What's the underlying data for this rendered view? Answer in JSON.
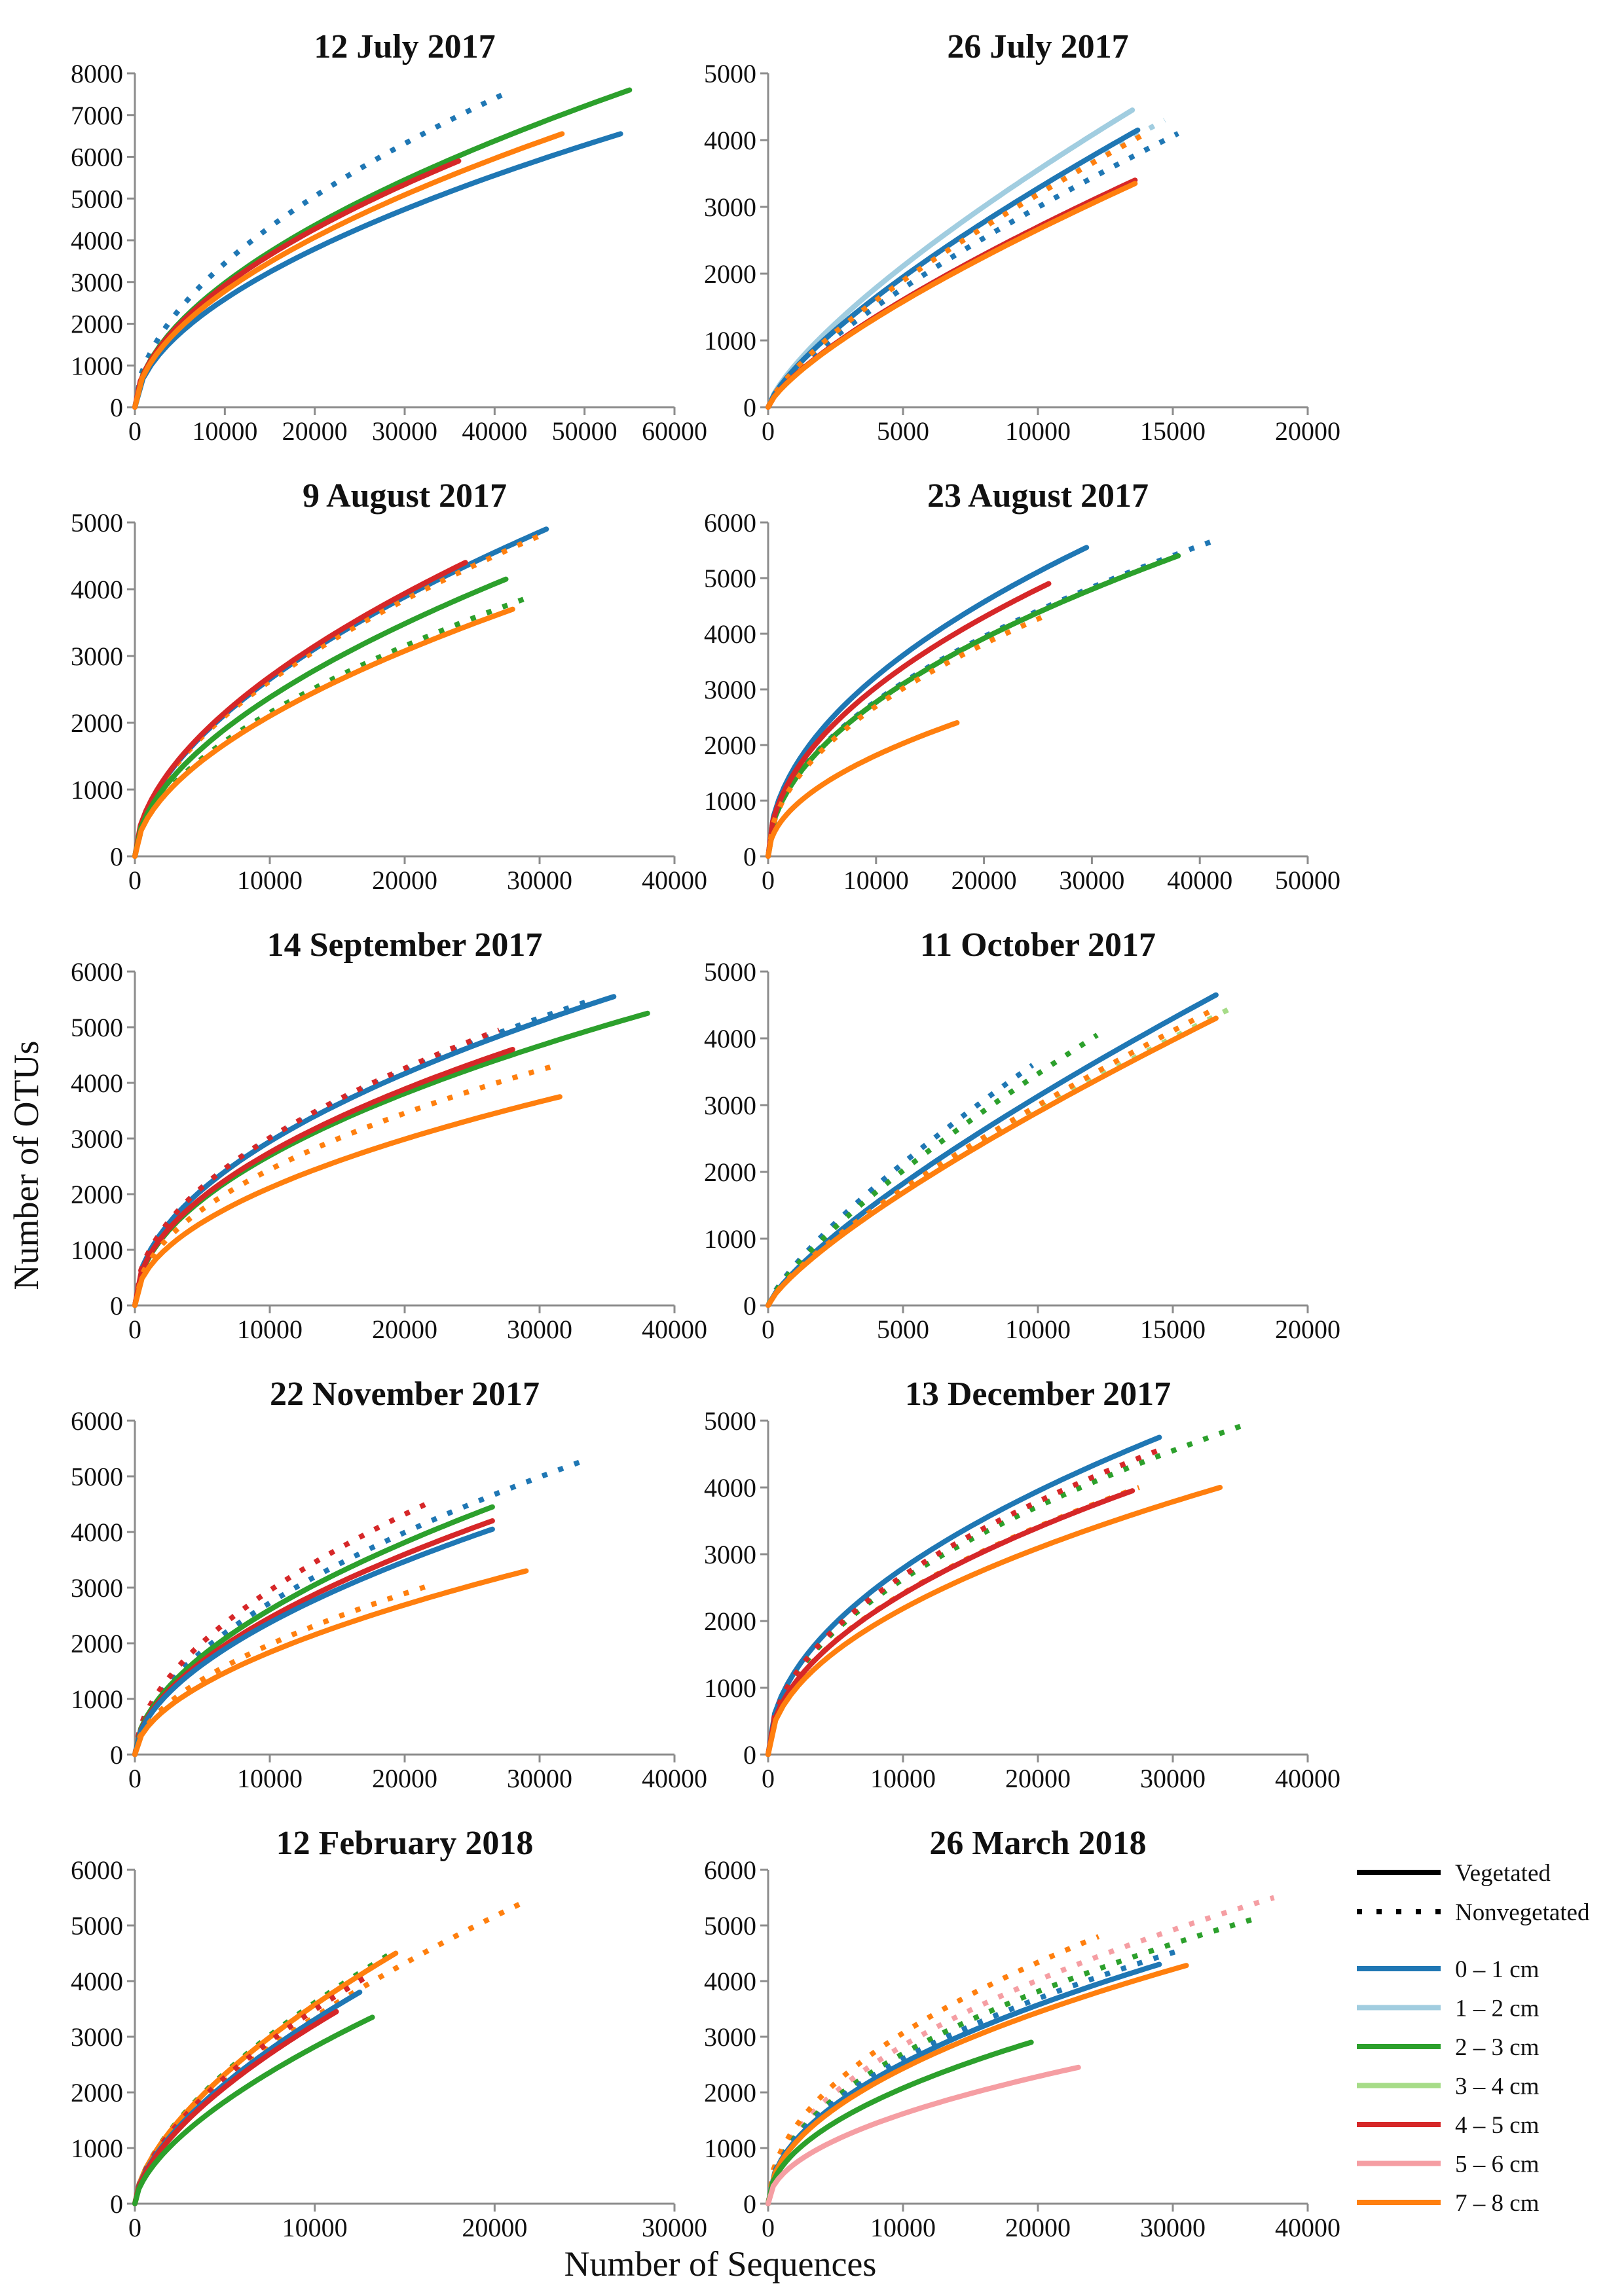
{
  "figure": {
    "ylabel": "Number of OTUs",
    "xlabel": "Number of Sequences"
  },
  "legend": {
    "styles": [
      {
        "label": "Vegetated",
        "dash": "solid"
      },
      {
        "label": "Nonvegetated",
        "dash": "dotted"
      }
    ],
    "depths": [
      {
        "label": "0 – 1 cm",
        "color": "#1f77b4"
      },
      {
        "label": "1 – 2 cm",
        "color": "#a1cde0"
      },
      {
        "label": "2 – 3 cm",
        "color": "#2ca02c"
      },
      {
        "label": "3 – 4 cm",
        "color": "#a6dc88"
      },
      {
        "label": "4 – 5 cm",
        "color": "#d62728"
      },
      {
        "label": "5 – 6 cm",
        "color": "#f59ea3"
      },
      {
        "label": "7 – 8 cm",
        "color": "#ff7f0e"
      }
    ]
  },
  "chart_data": [
    {
      "type": "line",
      "title": "12 July 2017",
      "xlim": [
        0,
        60000
      ],
      "ylim": [
        0,
        8000
      ],
      "xticks": [
        0,
        10000,
        20000,
        30000,
        40000,
        50000,
        60000
      ],
      "yticks": [
        0,
        1000,
        2000,
        3000,
        4000,
        5000,
        6000,
        7000,
        8000
      ],
      "series": [
        {
          "depth": "0 – 1 cm",
          "dash": "solid",
          "x_end": 54000,
          "y_end": 6550,
          "shape": 0.55
        },
        {
          "depth": "0 – 1 cm",
          "dash": "dotted",
          "x_end": 41000,
          "y_end": 7500,
          "shape": 0.55
        },
        {
          "depth": "2 – 3 cm",
          "dash": "solid",
          "x_end": 55000,
          "y_end": 7600,
          "shape": 0.55
        },
        {
          "depth": "4 – 5 cm",
          "dash": "solid",
          "x_end": 36000,
          "y_end": 5900,
          "shape": 0.55
        },
        {
          "depth": "7 – 8 cm",
          "dash": "solid",
          "x_end": 47500,
          "y_end": 6550,
          "shape": 0.55
        }
      ]
    },
    {
      "type": "line",
      "title": "26 July 2017",
      "xlim": [
        0,
        20000
      ],
      "ylim": [
        0,
        5000
      ],
      "xticks": [
        0,
        5000,
        10000,
        15000,
        20000
      ],
      "yticks": [
        0,
        1000,
        2000,
        3000,
        4000,
        5000
      ],
      "series": [
        {
          "depth": "1 – 2 cm",
          "dash": "solid",
          "x_end": 13500,
          "y_end": 4450,
          "shape": 0.75
        },
        {
          "depth": "1 – 2 cm",
          "dash": "dotted",
          "x_end": 14700,
          "y_end": 4300,
          "shape": 0.75
        },
        {
          "depth": "0 – 1 cm",
          "dash": "solid",
          "x_end": 13700,
          "y_end": 4150,
          "shape": 0.75
        },
        {
          "depth": "0 – 1 cm",
          "dash": "dotted",
          "x_end": 15200,
          "y_end": 4100,
          "shape": 0.75
        },
        {
          "depth": "7 – 8 cm",
          "dash": "dotted",
          "x_end": 14000,
          "y_end": 4100,
          "shape": 0.75
        },
        {
          "depth": "4 – 5 cm",
          "dash": "solid",
          "x_end": 13600,
          "y_end": 3400,
          "shape": 0.75
        },
        {
          "depth": "7 – 8 cm",
          "dash": "solid",
          "x_end": 13600,
          "y_end": 3350,
          "shape": 0.75
        }
      ]
    },
    {
      "type": "line",
      "title": "9 August 2017",
      "xlim": [
        0,
        40000
      ],
      "ylim": [
        0,
        5000
      ],
      "xticks": [
        0,
        10000,
        20000,
        30000,
        40000
      ],
      "yticks": [
        0,
        1000,
        2000,
        3000,
        4000,
        5000
      ],
      "series": [
        {
          "depth": "0 – 1 cm",
          "dash": "solid",
          "x_end": 30500,
          "y_end": 4900,
          "shape": 0.55
        },
        {
          "depth": "7 – 8 cm",
          "dash": "dotted",
          "x_end": 30000,
          "y_end": 4800,
          "shape": 0.55
        },
        {
          "depth": "4 – 5 cm",
          "dash": "solid",
          "x_end": 24500,
          "y_end": 4400,
          "shape": 0.55
        },
        {
          "depth": "2 – 3 cm",
          "dash": "solid",
          "x_end": 27500,
          "y_end": 4150,
          "shape": 0.55
        },
        {
          "depth": "2 – 3 cm",
          "dash": "dotted",
          "x_end": 29500,
          "y_end": 3900,
          "shape": 0.55
        },
        {
          "depth": "7 – 8 cm",
          "dash": "solid",
          "x_end": 28000,
          "y_end": 3700,
          "shape": 0.55
        }
      ]
    },
    {
      "type": "line",
      "title": "23 August 2017",
      "xlim": [
        0,
        50000
      ],
      "ylim": [
        0,
        6000
      ],
      "xticks": [
        0,
        10000,
        20000,
        30000,
        40000,
        50000
      ],
      "yticks": [
        0,
        1000,
        2000,
        3000,
        4000,
        5000,
        6000
      ],
      "series": [
        {
          "depth": "0 – 1 cm",
          "dash": "solid",
          "x_end": 29500,
          "y_end": 5550,
          "shape": 0.5
        },
        {
          "depth": "0 – 1 cm",
          "dash": "dotted",
          "x_end": 41000,
          "y_end": 5650,
          "shape": 0.5
        },
        {
          "depth": "2 – 3 cm",
          "dash": "solid",
          "x_end": 38000,
          "y_end": 5400,
          "shape": 0.5
        },
        {
          "depth": "4 – 5 cm",
          "dash": "solid",
          "x_end": 26000,
          "y_end": 4900,
          "shape": 0.5
        },
        {
          "depth": "7 – 8 cm",
          "dash": "dotted",
          "x_end": 26000,
          "y_end": 4350,
          "shape": 0.5
        },
        {
          "depth": "7 – 8 cm",
          "dash": "solid",
          "x_end": 17500,
          "y_end": 2400,
          "shape": 0.5
        }
      ]
    },
    {
      "type": "line",
      "title": "14 September 2017",
      "xlim": [
        0,
        40000
      ],
      "ylim": [
        0,
        6000
      ],
      "xticks": [
        0,
        10000,
        20000,
        30000,
        40000
      ],
      "yticks": [
        0,
        1000,
        2000,
        3000,
        4000,
        5000,
        6000
      ],
      "series": [
        {
          "depth": "0 – 1 cm",
          "dash": "solid",
          "x_end": 35500,
          "y_end": 5550,
          "shape": 0.5
        },
        {
          "depth": "0 – 1 cm",
          "dash": "dotted",
          "x_end": 34000,
          "y_end": 5500,
          "shape": 0.5
        },
        {
          "depth": "2 – 3 cm",
          "dash": "solid",
          "x_end": 38000,
          "y_end": 5250,
          "shape": 0.5
        },
        {
          "depth": "4 – 5 cm",
          "dash": "dotted",
          "x_end": 27000,
          "y_end": 4950,
          "shape": 0.5
        },
        {
          "depth": "4 – 5 cm",
          "dash": "solid",
          "x_end": 28000,
          "y_end": 4600,
          "shape": 0.5
        },
        {
          "depth": "7 – 8 cm",
          "dash": "dotted",
          "x_end": 31000,
          "y_end": 4300,
          "shape": 0.5
        },
        {
          "depth": "7 – 8 cm",
          "dash": "solid",
          "x_end": 31500,
          "y_end": 3750,
          "shape": 0.5
        }
      ]
    },
    {
      "type": "line",
      "title": "11 October 2017",
      "xlim": [
        0,
        20000
      ],
      "ylim": [
        0,
        5000
      ],
      "xticks": [
        0,
        5000,
        10000,
        15000,
        20000
      ],
      "yticks": [
        0,
        1000,
        2000,
        3000,
        4000,
        5000
      ],
      "series": [
        {
          "depth": "0 – 1 cm",
          "dash": "solid",
          "x_end": 16600,
          "y_end": 4650,
          "shape": 0.78
        },
        {
          "depth": "0 – 1 cm",
          "dash": "dotted",
          "x_end": 9800,
          "y_end": 3600,
          "shape": 0.78
        },
        {
          "depth": "2 – 3 cm",
          "dash": "dotted",
          "x_end": 12200,
          "y_end": 4050,
          "shape": 0.78
        },
        {
          "depth": "3 – 4 cm",
          "dash": "dotted",
          "x_end": 17400,
          "y_end": 4500,
          "shape": 0.78
        },
        {
          "depth": "7 – 8 cm",
          "dash": "dotted",
          "x_end": 16600,
          "y_end": 4450,
          "shape": 0.78
        },
        {
          "depth": "7 – 8 cm",
          "dash": "solid",
          "x_end": 16600,
          "y_end": 4300,
          "shape": 0.78
        }
      ]
    },
    {
      "type": "line",
      "title": "22 November 2017",
      "xlim": [
        0,
        40000
      ],
      "ylim": [
        0,
        6000
      ],
      "xticks": [
        0,
        10000,
        20000,
        30000,
        40000
      ],
      "yticks": [
        0,
        1000,
        2000,
        3000,
        4000,
        5000,
        6000
      ],
      "series": [
        {
          "depth": "0 – 1 cm",
          "dash": "dotted",
          "x_end": 33500,
          "y_end": 5300,
          "shape": 0.55
        },
        {
          "depth": "4 – 5 cm",
          "dash": "dotted",
          "x_end": 22000,
          "y_end": 4550,
          "shape": 0.55
        },
        {
          "depth": "2 – 3 cm",
          "dash": "solid",
          "x_end": 26500,
          "y_end": 4450,
          "shape": 0.55
        },
        {
          "depth": "4 – 5 cm",
          "dash": "solid",
          "x_end": 26500,
          "y_end": 4200,
          "shape": 0.55
        },
        {
          "depth": "0 – 1 cm",
          "dash": "solid",
          "x_end": 26500,
          "y_end": 4050,
          "shape": 0.55
        },
        {
          "depth": "7 – 8 cm",
          "dash": "solid",
          "x_end": 29000,
          "y_end": 3300,
          "shape": 0.55
        },
        {
          "depth": "7 – 8 cm",
          "dash": "dotted",
          "x_end": 22000,
          "y_end": 3050,
          "shape": 0.55
        }
      ]
    },
    {
      "type": "line",
      "title": "13 December 2017",
      "xlim": [
        0,
        40000
      ],
      "ylim": [
        0,
        5000
      ],
      "xticks": [
        0,
        10000,
        20000,
        30000,
        40000
      ],
      "yticks": [
        0,
        1000,
        2000,
        3000,
        4000,
        5000
      ],
      "series": [
        {
          "depth": "0 – 1 cm",
          "dash": "solid",
          "x_end": 29000,
          "y_end": 4750,
          "shape": 0.5
        },
        {
          "depth": "2 – 3 cm",
          "dash": "dotted",
          "x_end": 35500,
          "y_end": 4950,
          "shape": 0.5
        },
        {
          "depth": "4 – 5 cm",
          "dash": "dotted",
          "x_end": 29500,
          "y_end": 4600,
          "shape": 0.5
        },
        {
          "depth": "7 – 8 cm",
          "dash": "dotted",
          "x_end": 27500,
          "y_end": 4000,
          "shape": 0.5
        },
        {
          "depth": "4 – 5 cm",
          "dash": "solid",
          "x_end": 27000,
          "y_end": 3950,
          "shape": 0.5
        },
        {
          "depth": "7 – 8 cm",
          "dash": "solid",
          "x_end": 33500,
          "y_end": 4000,
          "shape": 0.5
        }
      ]
    },
    {
      "type": "line",
      "title": "12 February 2018",
      "xlim": [
        0,
        30000
      ],
      "ylim": [
        0,
        6000
      ],
      "xticks": [
        0,
        10000,
        20000,
        30000
      ],
      "yticks": [
        0,
        1000,
        2000,
        3000,
        4000,
        5000,
        6000
      ],
      "series": [
        {
          "depth": "7 – 8 cm",
          "dash": "dotted",
          "x_end": 21500,
          "y_end": 5400,
          "shape": 0.62
        },
        {
          "depth": "2 – 3 cm",
          "dash": "dotted",
          "x_end": 14500,
          "y_end": 4550,
          "shape": 0.62
        },
        {
          "depth": "7 – 8 cm",
          "dash": "solid",
          "x_end": 14500,
          "y_end": 4500,
          "shape": 0.62
        },
        {
          "depth": "4 – 5 cm",
          "dash": "dotted",
          "x_end": 13000,
          "y_end": 4100,
          "shape": 0.62
        },
        {
          "depth": "0 – 1 cm",
          "dash": "solid",
          "x_end": 12500,
          "y_end": 3800,
          "shape": 0.62
        },
        {
          "depth": "4 – 5 cm",
          "dash": "solid",
          "x_end": 11200,
          "y_end": 3450,
          "shape": 0.62
        },
        {
          "depth": "2 – 3 cm",
          "dash": "solid",
          "x_end": 13200,
          "y_end": 3350,
          "shape": 0.62
        }
      ]
    },
    {
      "type": "line",
      "title": "26 March 2018",
      "xlim": [
        0,
        40000
      ],
      "ylim": [
        0,
        6000
      ],
      "xticks": [
        0,
        10000,
        20000,
        30000,
        40000
      ],
      "yticks": [
        0,
        1000,
        2000,
        3000,
        4000,
        5000,
        6000
      ],
      "series": [
        {
          "depth": "5 – 6 cm",
          "dash": "dotted",
          "x_end": 37500,
          "y_end": 5500,
          "shape": 0.5
        },
        {
          "depth": "2 – 3 cm",
          "dash": "dotted",
          "x_end": 36500,
          "y_end": 5150,
          "shape": 0.5
        },
        {
          "depth": "7 – 8 cm",
          "dash": "dotted",
          "x_end": 24500,
          "y_end": 4800,
          "shape": 0.5
        },
        {
          "depth": "0 – 1 cm",
          "dash": "dotted",
          "x_end": 30500,
          "y_end": 4550,
          "shape": 0.5
        },
        {
          "depth": "0 – 1 cm",
          "dash": "solid",
          "x_end": 29000,
          "y_end": 4300,
          "shape": 0.5
        },
        {
          "depth": "7 – 8 cm",
          "dash": "solid",
          "x_end": 31000,
          "y_end": 4280,
          "shape": 0.5
        },
        {
          "depth": "2 – 3 cm",
          "dash": "solid",
          "x_end": 19500,
          "y_end": 2900,
          "shape": 0.5
        },
        {
          "depth": "5 – 6 cm",
          "dash": "solid",
          "x_end": 23000,
          "y_end": 2450,
          "shape": 0.5
        }
      ]
    }
  ]
}
